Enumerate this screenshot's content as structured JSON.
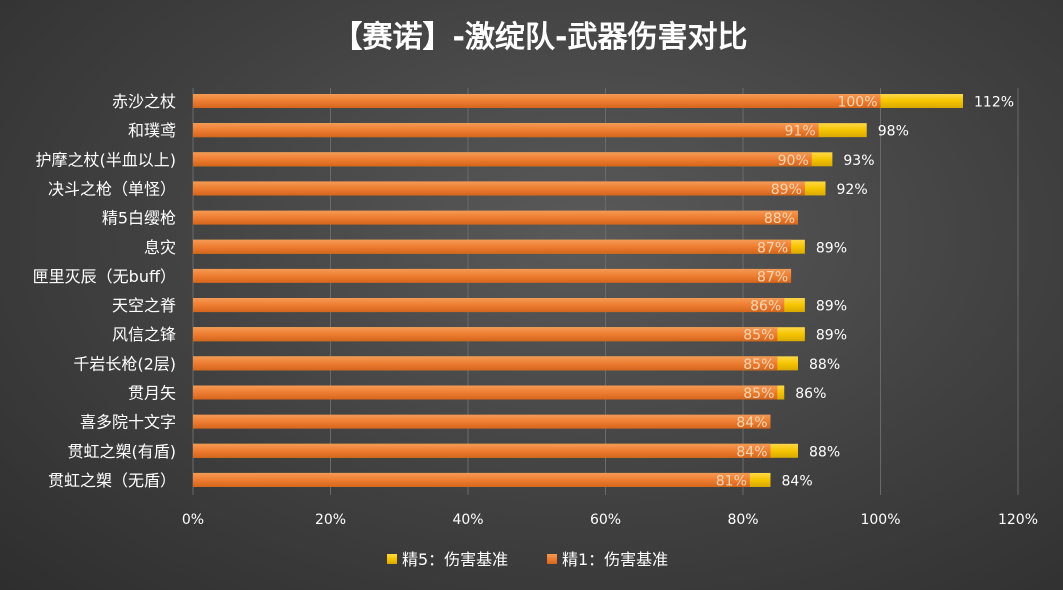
{
  "chart_data": {
    "type": "bar",
    "orientation": "horizontal",
    "title": "【赛诺】-激绽队-武器伤害对比",
    "categories": [
      "赤沙之杖",
      "和璞鸢",
      "护摩之杖(半血以上)",
      "决斗之枪（单怪）",
      "精5白缨枪",
      "息灾",
      "匣里灭辰（无buff）",
      "天空之脊",
      "风信之锋",
      "千岩长枪(2层)",
      "贯月矢",
      "喜多院十文字",
      "贯虹之槊(有盾)",
      "贯虹之槊（无盾）"
    ],
    "series": [
      {
        "name": "精5：伤害基准",
        "color": "#f5c400",
        "values": [
          112,
          98,
          93,
          92,
          null,
          89,
          null,
          89,
          89,
          88,
          86,
          null,
          88,
          84
        ]
      },
      {
        "name": "精1：伤害基准",
        "color": "#ed7d31",
        "values": [
          100,
          91,
          90,
          89,
          88,
          87,
          87,
          86,
          85,
          85,
          85,
          84,
          84,
          81
        ]
      }
    ],
    "xlim": [
      0,
      120
    ],
    "xticks": [
      "0%",
      "20%",
      "40%",
      "60%",
      "80%",
      "100%",
      "120%"
    ],
    "xtick_values": [
      0,
      20,
      40,
      60,
      80,
      100,
      120
    ],
    "value_suffix": "%",
    "legend": "bottom",
    "grid": true
  }
}
